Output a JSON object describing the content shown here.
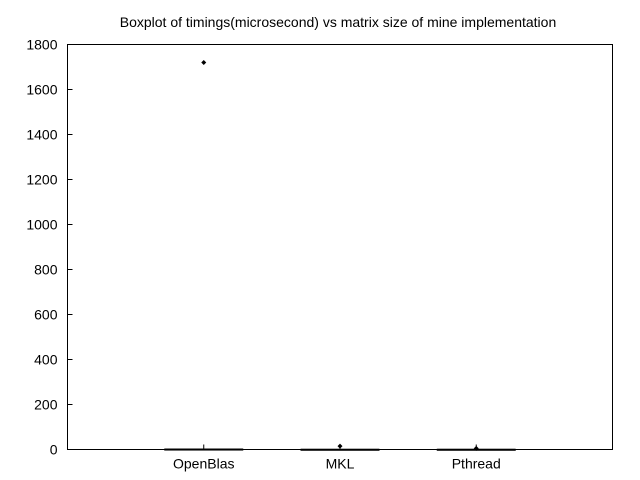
{
  "chart_data": {
    "type": "box",
    "title": "Boxplot of timings(microsecond) vs matrix size of mine implementation",
    "xlabel": "",
    "ylabel": "",
    "categories": [
      "OpenBlas",
      "MKL",
      "Pthread"
    ],
    "ylim": [
      0,
      1800
    ],
    "yticks": [
      0,
      200,
      400,
      600,
      800,
      1000,
      1200,
      1400,
      1600,
      1800
    ],
    "grid": false,
    "series": [
      {
        "category": "OpenBlas",
        "whisker_low": 0,
        "q1": 0,
        "median": 1,
        "q3": 2,
        "whisker_high": 4,
        "outliers": [
          1720
        ]
      },
      {
        "category": "MKL",
        "whisker_low": 0,
        "q1": 0,
        "median": 0,
        "q3": 1,
        "whisker_high": 2,
        "outliers": [
          15
        ]
      },
      {
        "category": "Pthread",
        "whisker_low": 0,
        "q1": 0,
        "median": 0,
        "q3": 1,
        "whisker_high": 2,
        "outliers": [
          5
        ]
      }
    ]
  }
}
